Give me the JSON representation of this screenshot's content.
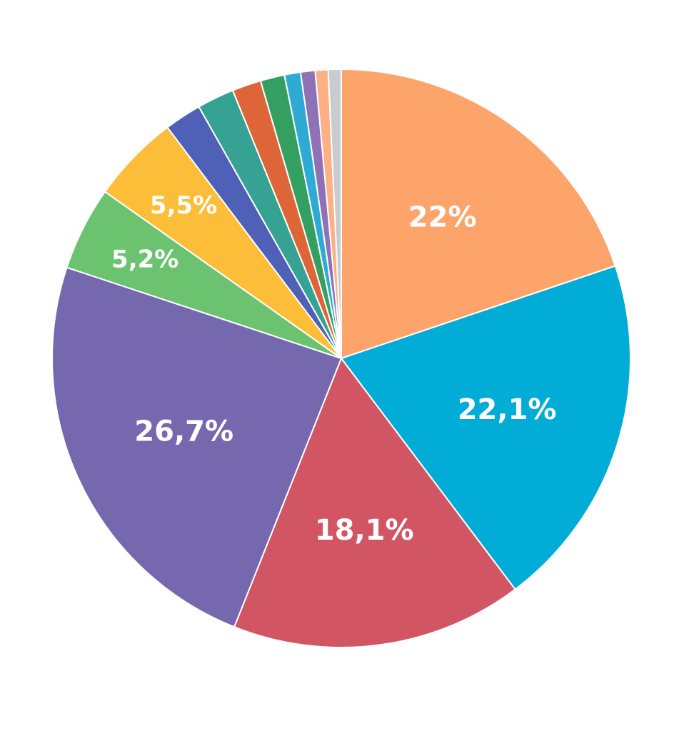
{
  "chart_data": {
    "type": "pie",
    "start": "top",
    "direction": "clockwise",
    "slices": [
      {
        "label": "22%",
        "value": 22.0,
        "color": "#fca46a"
      },
      {
        "label": "22,1%",
        "value": 22.1,
        "color": "#01acd7"
      },
      {
        "label": "18,1%",
        "value": 18.1,
        "color": "#d25563"
      },
      {
        "label": "26,7%",
        "value": 26.7,
        "color": "#7668ae"
      },
      {
        "label": "5,2%",
        "value": 5.2,
        "color": "#6cc36f"
      },
      {
        "label": "5,5%",
        "value": 5.5,
        "color": "#fcbd38"
      },
      {
        "label": "",
        "value": 2.3,
        "color": "#4f60b7"
      },
      {
        "label": "",
        "value": 2.3,
        "color": "#36a293"
      },
      {
        "label": "",
        "value": 1.8,
        "color": "#dd6537"
      },
      {
        "label": "",
        "value": 1.5,
        "color": "#33a061"
      },
      {
        "label": "",
        "value": 1.0,
        "color": "#2eabd4"
      },
      {
        "label": "",
        "value": 0.9,
        "color": "#8f72b6"
      },
      {
        "label": "",
        "value": 0.8,
        "color": "#fcb083"
      },
      {
        "label": "",
        "value": 0.8,
        "color": "#c8cbcf"
      }
    ]
  }
}
